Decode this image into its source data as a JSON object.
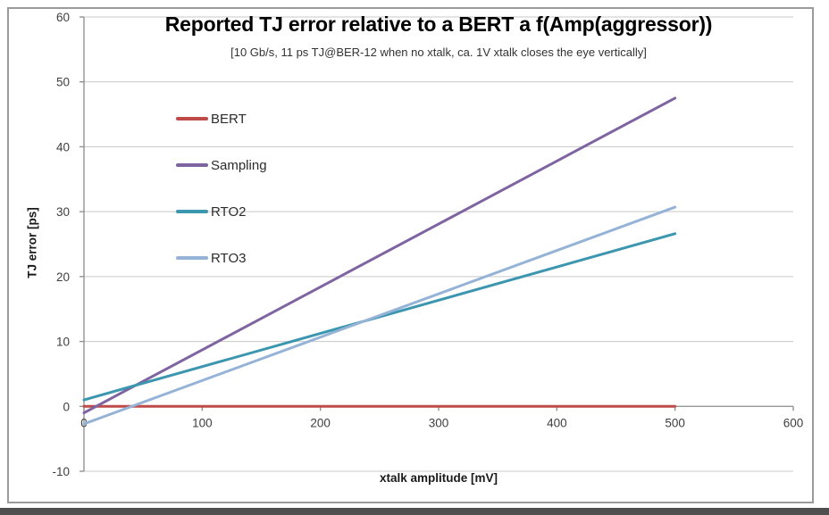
{
  "appearance": {
    "grid_color": "#C9C9C9",
    "axis_color": "#8C8C8C",
    "tick_text_color": "#3F3F3F",
    "frame_border_color": "#9B9B9B",
    "bottom_edge_color": "#4F4F4F",
    "background": "#FFFFFF"
  },
  "chart_data": {
    "type": "line",
    "title": "Reported TJ error relative to a BERT a f(Amp(aggressor))",
    "subtitle": "[10 Gb/s, 11 ps TJ@BER-12 when no xtalk, ca. 1V xtalk closes the eye vertically]",
    "xlabel": "xtalk amplitude [mV]",
    "ylabel": "TJ error [ps]",
    "xlim": [
      0,
      600
    ],
    "ylim": [
      -10,
      60
    ],
    "x_ticks": [
      0,
      100,
      200,
      300,
      400,
      500,
      600
    ],
    "y_ticks": [
      60,
      50,
      40,
      30,
      20,
      10,
      0,
      -10
    ],
    "grid": "horizontal",
    "legend_position": "inside-left",
    "x": [
      0,
      500
    ],
    "series": [
      {
        "name": "BERT",
        "color": "#BE4B48",
        "values": [
          0,
          0
        ]
      },
      {
        "name": "Sampling",
        "color": "#7E64A0",
        "values": [
          -1,
          47.5
        ]
      },
      {
        "name": "RTO2",
        "color": "#3C96AF",
        "values": [
          1,
          26.6
        ]
      },
      {
        "name": "RTO3",
        "color": "#95B3D7",
        "values": [
          -2.7,
          30.7
        ]
      }
    ]
  }
}
